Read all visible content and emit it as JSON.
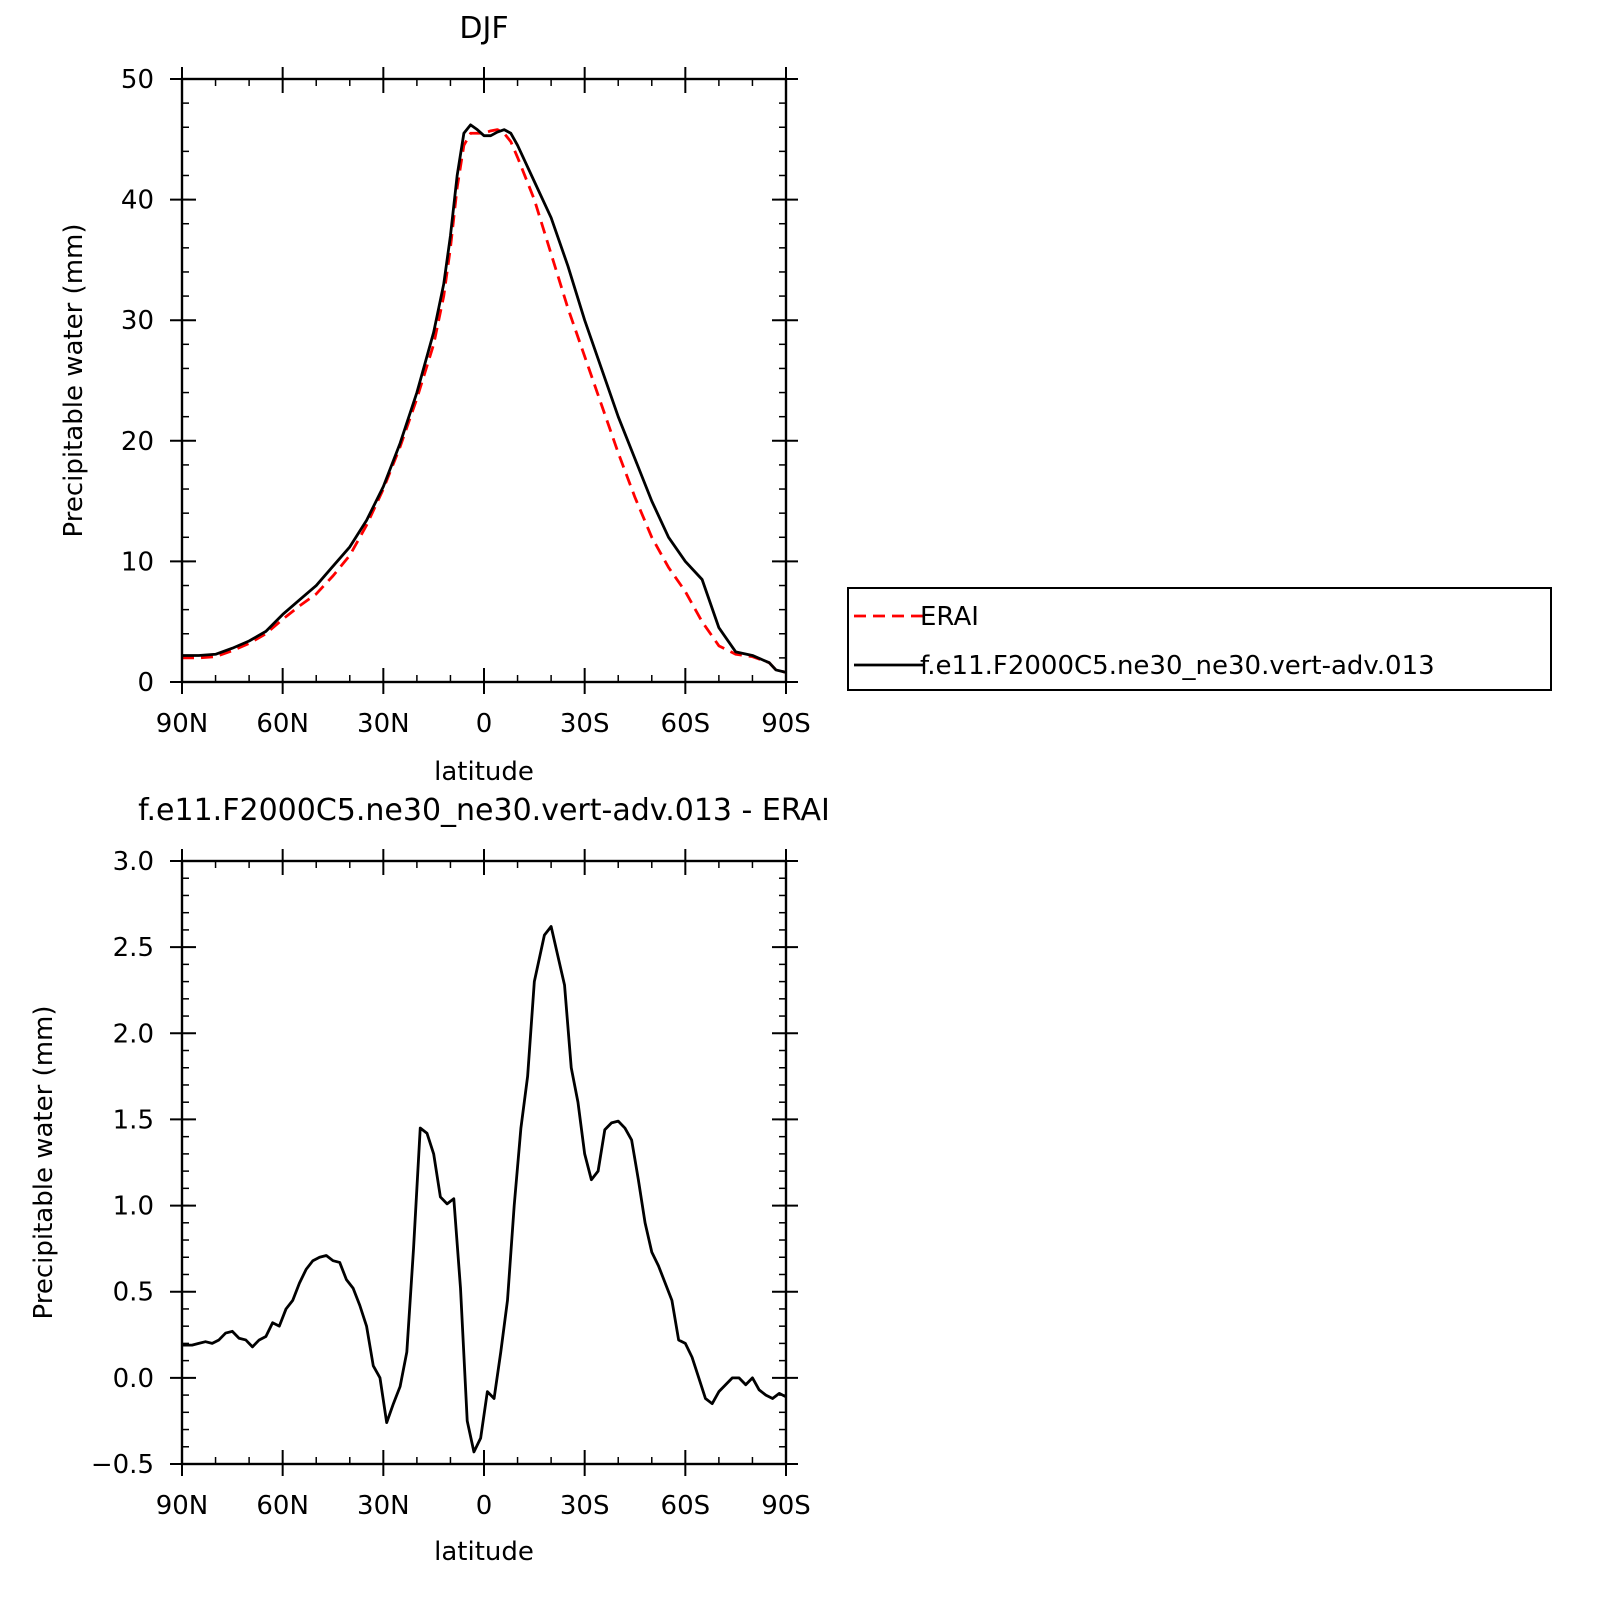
{
  "chart_data": [
    {
      "type": "line",
      "title": "DJF",
      "xlabel": "latitude",
      "ylabel": "Precipitable water (mm)",
      "xlim": [
        90,
        -90
      ],
      "ylim": [
        0,
        50
      ],
      "xticks": [
        90,
        60,
        30,
        0,
        -30,
        -60,
        -90
      ],
      "xtick_labels": [
        "90N",
        "60N",
        "30N",
        "0",
        "30S",
        "60S",
        "90S"
      ],
      "yticks": [
        0,
        10,
        20,
        30,
        40,
        50
      ],
      "ytick_labels": [
        "0",
        "10",
        "20",
        "30",
        "40",
        "50"
      ],
      "legend": {
        "placement": "right",
        "entries": [
          "ERAI",
          "f.e11.F2000C5.ne30_ne30.vert-adv.013"
        ]
      },
      "series": [
        {
          "name": "ERAI",
          "color": "#ff0000",
          "dash": true,
          "x": [
            90,
            85,
            80,
            75,
            70,
            65,
            60,
            55,
            50,
            45,
            40,
            35,
            30,
            25,
            20,
            15,
            12,
            10,
            8,
            6,
            4,
            2,
            0,
            -2,
            -4,
            -6,
            -8,
            -10,
            -15,
            -20,
            -25,
            -30,
            -35,
            -40,
            -45,
            -50,
            -55,
            -60,
            -65,
            -70,
            -75,
            -80,
            -85,
            -87,
            -90
          ],
          "y": [
            2.0,
            2.0,
            2.1,
            2.6,
            3.2,
            4.0,
            5.2,
            6.3,
            7.3,
            8.8,
            10.5,
            13.0,
            16.0,
            19.5,
            23.5,
            28.0,
            32.0,
            36.0,
            41.0,
            44.5,
            45.5,
            45.5,
            45.5,
            45.7,
            45.8,
            45.5,
            44.8,
            43.5,
            40.0,
            35.5,
            31.0,
            27.0,
            23.0,
            19.0,
            15.3,
            12.0,
            9.5,
            7.5,
            5.0,
            3.0,
            2.3,
            2.1,
            1.6,
            1.0,
            0.8
          ]
        },
        {
          "name": "f.e11.F2000C5.ne30_ne30.vert-adv.013",
          "color": "#000000",
          "dash": false,
          "x": [
            90,
            85,
            80,
            75,
            70,
            65,
            60,
            55,
            50,
            45,
            40,
            35,
            30,
            25,
            20,
            15,
            12,
            10,
            8,
            6,
            4,
            2,
            0,
            -2,
            -4,
            -6,
            -8,
            -10,
            -15,
            -20,
            -25,
            -30,
            -35,
            -40,
            -45,
            -50,
            -55,
            -60,
            -65,
            -70,
            -75,
            -80,
            -85,
            -87,
            -90
          ],
          "y": [
            2.2,
            2.2,
            2.3,
            2.8,
            3.4,
            4.2,
            5.6,
            6.8,
            8.0,
            9.6,
            11.2,
            13.4,
            16.2,
            19.8,
            24.0,
            29.0,
            33.0,
            37.0,
            42.0,
            45.5,
            46.2,
            45.8,
            45.3,
            45.3,
            45.6,
            45.8,
            45.5,
            44.5,
            41.5,
            38.5,
            34.5,
            30.0,
            26.0,
            22.0,
            18.5,
            15.0,
            12.0,
            10.0,
            8.5,
            4.5,
            2.5,
            2.2,
            1.6,
            1.0,
            0.8
          ]
        }
      ]
    },
    {
      "type": "line",
      "title": "f.e11.F2000C5.ne30_ne30.vert-adv.013 - ERAI",
      "xlabel": "latitude",
      "ylabel": "Precipitable water (mm)",
      "xlim": [
        90,
        -90
      ],
      "ylim": [
        -0.5,
        3.0
      ],
      "xticks": [
        90,
        60,
        30,
        0,
        -30,
        -60,
        -90
      ],
      "xtick_labels": [
        "90N",
        "60N",
        "30N",
        "0",
        "30S",
        "60S",
        "90S"
      ],
      "yticks": [
        -0.5,
        0.0,
        0.5,
        1.0,
        1.5,
        2.0,
        2.5,
        3.0
      ],
      "ytick_labels": [
        "−0.5",
        "0.0",
        "0.5",
        "1.0",
        "1.5",
        "2.0",
        "2.5",
        "3.0"
      ],
      "series": [
        {
          "color": "#000000",
          "dash": false,
          "x": [
            90,
            87,
            85,
            83,
            81,
            79,
            77,
            75,
            73,
            71,
            69,
            67,
            65,
            63,
            61,
            59,
            57,
            55,
            53,
            51,
            49,
            47,
            45,
            43,
            41,
            39,
            37,
            35,
            33,
            31,
            29,
            27,
            25,
            23,
            21,
            19,
            17,
            15,
            13,
            11,
            9,
            7,
            5,
            3,
            1,
            -1,
            -3,
            -5,
            -7,
            -9,
            -11,
            -13,
            -15,
            -17,
            -18,
            -20,
            -22,
            -24,
            -26,
            -28,
            -30,
            -32,
            -34,
            -36,
            -38,
            -40,
            -42,
            -44,
            -46,
            -48,
            -50,
            -52,
            -54,
            -56,
            -58,
            -60,
            -62,
            -64,
            -66,
            -68,
            -70,
            -72,
            -74,
            -76,
            -78,
            -80,
            -82,
            -84,
            -86,
            -88,
            -90
          ],
          "y": [
            0.19,
            0.19,
            0.2,
            0.21,
            0.2,
            0.22,
            0.26,
            0.27,
            0.23,
            0.22,
            0.18,
            0.22,
            0.24,
            0.32,
            0.3,
            0.4,
            0.45,
            0.55,
            0.63,
            0.68,
            0.7,
            0.71,
            0.68,
            0.67,
            0.57,
            0.52,
            0.42,
            0.3,
            0.07,
            0.0,
            -0.26,
            -0.15,
            -0.05,
            0.15,
            0.75,
            1.45,
            1.42,
            1.3,
            1.05,
            1.01,
            1.04,
            0.52,
            -0.25,
            -0.43,
            -0.35,
            -0.08,
            -0.12,
            0.15,
            0.45,
            1.0,
            1.45,
            1.75,
            2.3,
            2.48,
            2.57,
            2.62,
            2.45,
            2.28,
            1.8,
            1.6,
            1.3,
            1.15,
            1.2,
            1.44,
            1.48,
            1.49,
            1.45,
            1.38,
            1.15,
            0.9,
            0.73,
            0.65,
            0.55,
            0.45,
            0.22,
            0.2,
            0.12,
            0.0,
            -0.12,
            -0.15,
            -0.08,
            -0.04,
            0.0,
            0.0,
            -0.04,
            0.0,
            -0.07,
            -0.1,
            -0.12,
            -0.09,
            -0.11
          ]
        }
      ]
    }
  ]
}
